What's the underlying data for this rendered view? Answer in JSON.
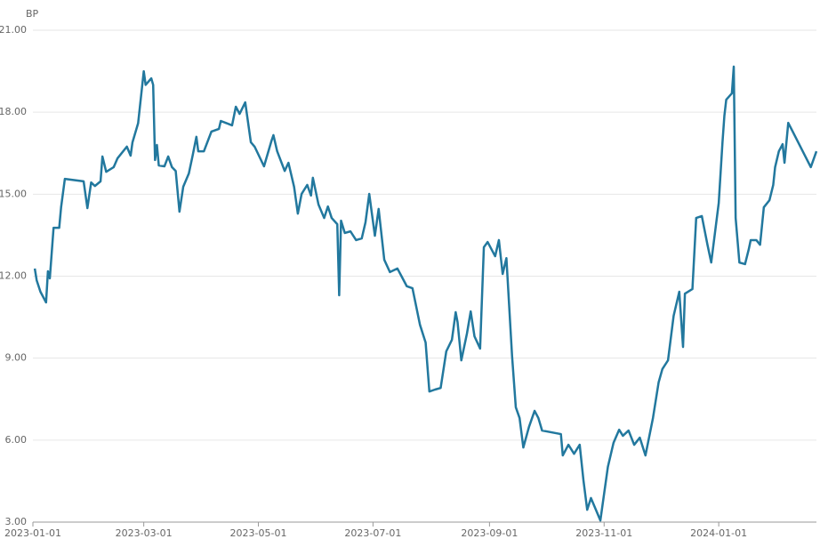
{
  "chart_data": {
    "type": "line",
    "y_label": "BP",
    "x": [
      "2023-01-02",
      "2023-01-03",
      "2023-01-05",
      "2023-01-08",
      "2023-01-09",
      "2023-01-10",
      "2023-01-12",
      "2023-01-15",
      "2023-01-16",
      "2023-01-18",
      "2023-01-28",
      "2023-01-30",
      "2023-02-01",
      "2023-02-03",
      "2023-02-06",
      "2023-02-07",
      "2023-02-09",
      "2023-02-13",
      "2023-02-15",
      "2023-02-20",
      "2023-02-22",
      "2023-02-23",
      "2023-02-26",
      "2023-03-01",
      "2023-03-02",
      "2023-03-05",
      "2023-03-06",
      "2023-03-07",
      "2023-03-08",
      "2023-03-09",
      "2023-03-12",
      "2023-03-14",
      "2023-03-16",
      "2023-03-18",
      "2023-03-20",
      "2023-03-22",
      "2023-03-25",
      "2023-03-27",
      "2023-03-29",
      "2023-03-30",
      "2023-04-02",
      "2023-04-06",
      "2023-04-10",
      "2023-04-11",
      "2023-04-17",
      "2023-04-19",
      "2023-04-21",
      "2023-04-24",
      "2023-04-27",
      "2023-04-29",
      "2023-05-04",
      "2023-05-08",
      "2023-05-09",
      "2023-05-11",
      "2023-05-15",
      "2023-05-17",
      "2023-05-20",
      "2023-05-22",
      "2023-05-24",
      "2023-05-27",
      "2023-05-29",
      "2023-05-30",
      "2023-06-02",
      "2023-06-05",
      "2023-06-07",
      "2023-06-09",
      "2023-06-12",
      "2023-06-13",
      "2023-06-14",
      "2023-06-16",
      "2023-06-19",
      "2023-06-22",
      "2023-06-25",
      "2023-06-27",
      "2023-06-29",
      "2023-07-02",
      "2023-07-04",
      "2023-07-07",
      "2023-07-10",
      "2023-07-14",
      "2023-07-16",
      "2023-07-19",
      "2023-07-22",
      "2023-07-26",
      "2023-07-29",
      "2023-07-31",
      "2023-08-03",
      "2023-08-06",
      "2023-08-09",
      "2023-08-12",
      "2023-08-14",
      "2023-08-15",
      "2023-08-17",
      "2023-08-20",
      "2023-08-22",
      "2023-08-24",
      "2023-08-27",
      "2023-08-29",
      "2023-08-31",
      "2023-09-04",
      "2023-09-06",
      "2023-09-08",
      "2023-09-10",
      "2023-09-13",
      "2023-09-15",
      "2023-09-17",
      "2023-09-19",
      "2023-09-22",
      "2023-09-25",
      "2023-09-27",
      "2023-09-29",
      "2023-10-09",
      "2023-10-10",
      "2023-10-13",
      "2023-10-16",
      "2023-10-19",
      "2023-10-21",
      "2023-10-23",
      "2023-10-25",
      "2023-10-28",
      "2023-10-30",
      "2023-11-01",
      "2023-11-03",
      "2023-11-06",
      "2023-11-09",
      "2023-11-11",
      "2023-11-14",
      "2023-11-17",
      "2023-11-20",
      "2023-11-23",
      "2023-11-27",
      "2023-11-30",
      "2023-12-02",
      "2023-12-05",
      "2023-12-08",
      "2023-12-11",
      "2023-12-13",
      "2023-12-14",
      "2023-12-18",
      "2023-12-20",
      "2023-12-23",
      "2023-12-26",
      "2023-12-28",
      "2024-01-01",
      "2024-01-03",
      "2024-01-04",
      "2024-01-05",
      "2024-01-08",
      "2024-01-09",
      "2024-01-10",
      "2024-01-12",
      "2024-01-15",
      "2024-01-17",
      "2024-01-18",
      "2024-01-21",
      "2024-01-23",
      "2024-01-25",
      "2024-01-28",
      "2024-01-30",
      "2024-01-31",
      "2024-02-02",
      "2024-02-04",
      "2024-02-05",
      "2024-02-07",
      "2024-02-19",
      "2024-02-22"
    ],
    "series": [
      {
        "color": "#22789e",
        "values": [
          12.28,
          11.85,
          11.43,
          11.04,
          12.18,
          11.92,
          13.77,
          13.77,
          14.52,
          15.56,
          15.47,
          14.49,
          15.43,
          15.3,
          15.47,
          16.38,
          15.82,
          15.99,
          16.31,
          16.74,
          16.41,
          16.9,
          17.6,
          19.5,
          19.0,
          19.24,
          19.0,
          16.25,
          16.8,
          16.05,
          16.02,
          16.38,
          15.99,
          15.85,
          14.36,
          15.27,
          15.76,
          16.41,
          17.1,
          16.57,
          16.57,
          17.29,
          17.39,
          17.68,
          17.52,
          18.2,
          17.94,
          18.36,
          16.9,
          16.74,
          16.02,
          16.96,
          17.16,
          16.57,
          15.85,
          16.15,
          15.27,
          14.29,
          15.01,
          15.34,
          14.95,
          15.6,
          14.62,
          14.13,
          14.55,
          14.13,
          13.9,
          11.3,
          14.03,
          13.58,
          13.64,
          13.32,
          13.38,
          13.97,
          15.01,
          13.48,
          14.46,
          12.6,
          12.15,
          12.28,
          12.02,
          11.63,
          11.56,
          10.22,
          9.57,
          7.78,
          7.85,
          7.91,
          9.25,
          9.67,
          10.68,
          10.32,
          8.92,
          9.9,
          10.71,
          9.8,
          9.35,
          13.06,
          13.25,
          12.73,
          13.32,
          12.08,
          12.66,
          9.09,
          7.2,
          6.81,
          5.73,
          6.48,
          7.07,
          6.81,
          6.35,
          6.22,
          5.44,
          5.83,
          5.5,
          5.83,
          4.53,
          3.45,
          3.88,
          3.39,
          3.06,
          4.04,
          5.02,
          5.9,
          6.38,
          6.16,
          6.35,
          5.83,
          6.09,
          5.44,
          6.81,
          8.11,
          8.6,
          8.92,
          10.55,
          11.43,
          9.41,
          11.36,
          11.53,
          14.13,
          14.2,
          13.15,
          12.5,
          14.68,
          16.9,
          17.87,
          18.46,
          18.69,
          19.67,
          14.13,
          12.5,
          12.44,
          12.99,
          13.32,
          13.32,
          13.15,
          14.52,
          14.78,
          15.34,
          15.99,
          16.57,
          16.83,
          16.15,
          17.61,
          15.99,
          16.57
        ]
      }
    ],
    "xlim": [
      "2023-01-01",
      "2024-02-22"
    ],
    "xticks": [
      "2023-01-01",
      "2023-03-01",
      "2023-05-01",
      "2023-07-01",
      "2023-09-01",
      "2023-11-01",
      "2024-01-01"
    ],
    "ylim": [
      3,
      21
    ],
    "yticks": [
      {
        "value": 3,
        "label": "3.00"
      },
      {
        "value": 6,
        "label": "6.00"
      },
      {
        "value": 9,
        "label": "9.00"
      },
      {
        "value": 12,
        "label": "12.00"
      },
      {
        "value": 15,
        "label": "15.00"
      },
      {
        "value": 18,
        "label": "18.00"
      },
      {
        "value": 21,
        "label": "21.00"
      }
    ],
    "grid": true
  }
}
